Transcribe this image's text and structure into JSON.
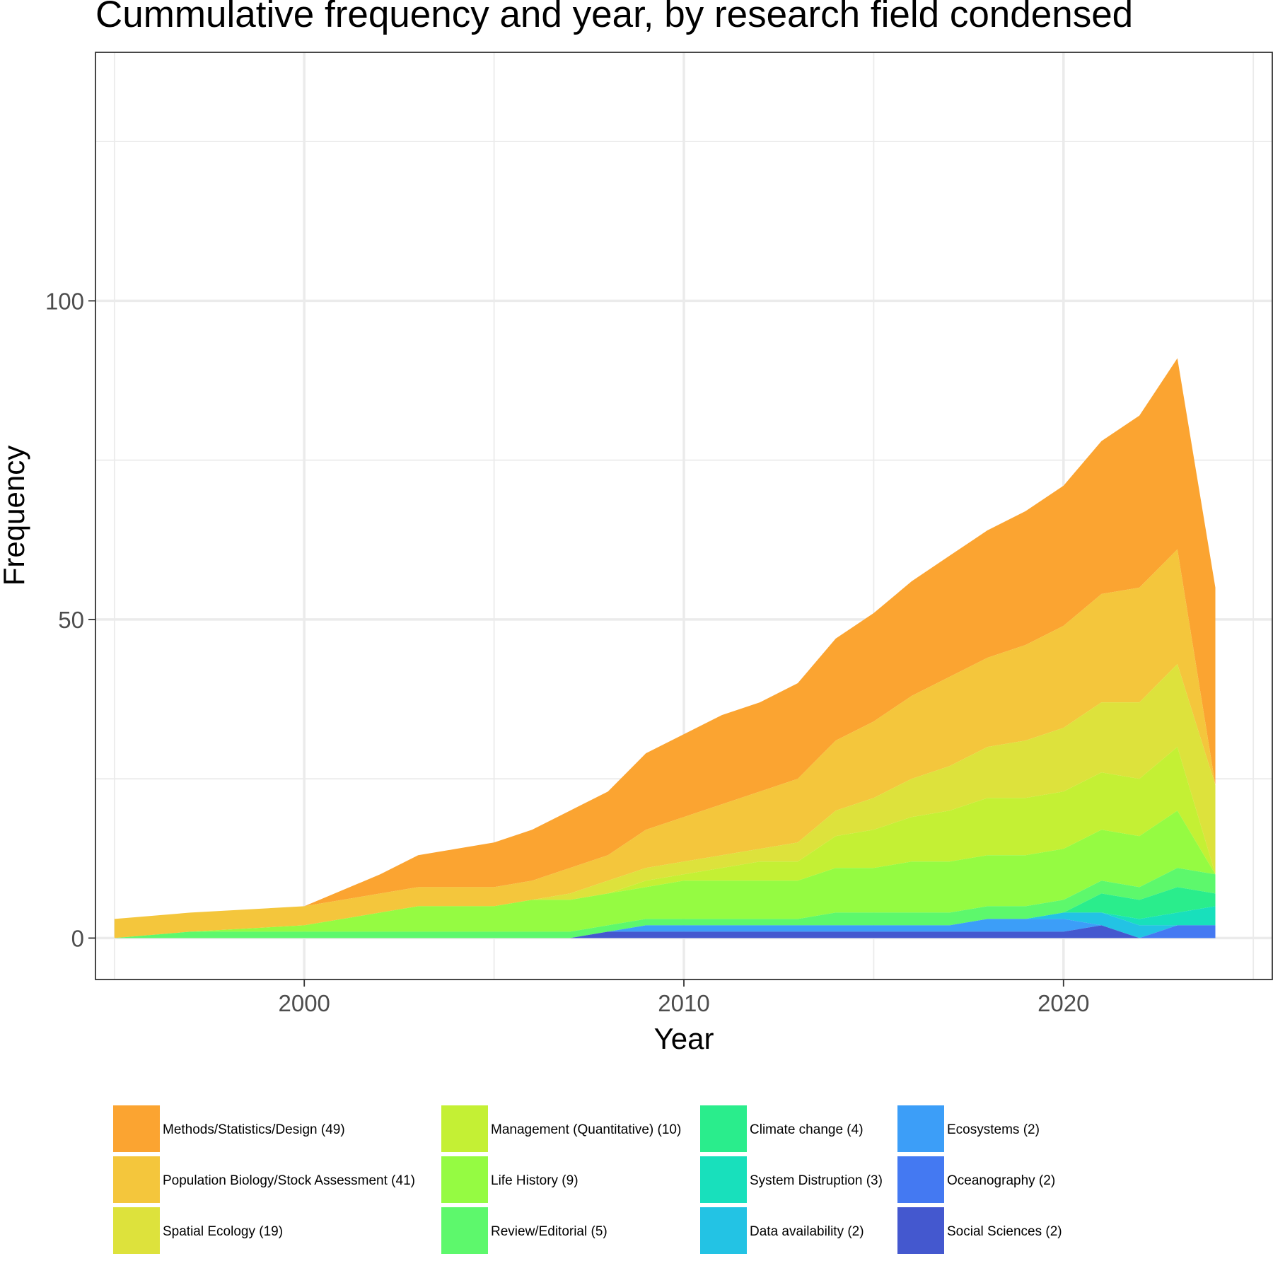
{
  "chart_data": {
    "type": "area",
    "stacked": true,
    "title": "Cummulative frequency and year, by research field condensed",
    "xlabel": "Year",
    "ylabel": "Frequency",
    "xlim": [
      1994.5,
      2025.5
    ],
    "ylim": [
      -6.5,
      139
    ],
    "x_ticks": [
      2000,
      2010,
      2020
    ],
    "y_ticks": [
      0,
      50,
      100
    ],
    "grid": true,
    "legend_position": "bottom",
    "x": [
      1995,
      1997,
      2000,
      2002,
      2003,
      2004,
      2005,
      2006,
      2007,
      2008,
      2009,
      2010,
      2011,
      2012,
      2013,
      2014,
      2015,
      2016,
      2017,
      2018,
      2019,
      2020,
      2021,
      2022,
      2023,
      2024
    ],
    "series": [
      {
        "name": "Methods/Statistics/Design (49)",
        "color": "#fba431",
        "values": [
          0,
          0,
          0,
          3,
          5,
          6,
          7,
          8,
          9,
          10,
          12,
          13,
          14,
          14,
          15,
          16,
          17,
          18,
          19,
          20,
          21,
          22,
          24,
          27,
          30,
          31
        ]
      },
      {
        "name": "Population Biology/Stock Assessment (41)",
        "color": "#f4c63c",
        "values": [
          3,
          3,
          3,
          3,
          3,
          3,
          3,
          3,
          4,
          4,
          6,
          7,
          8,
          9,
          10,
          11,
          12,
          13,
          14,
          14,
          15,
          16,
          17,
          18,
          18,
          0
        ]
      },
      {
        "name": "Spatial Ecology (19)",
        "color": "#dde23c",
        "values": [
          0,
          0,
          0,
          0,
          0,
          0,
          0,
          0,
          1,
          2,
          2,
          2,
          2,
          2,
          3,
          4,
          5,
          6,
          7,
          8,
          9,
          10,
          11,
          12,
          13,
          14
        ]
      },
      {
        "name": "Management (Quantitative) (10)",
        "color": "#c4f034",
        "values": [
          0,
          0,
          0,
          0,
          0,
          0,
          0,
          0,
          0,
          0,
          1,
          1,
          2,
          3,
          3,
          5,
          6,
          7,
          8,
          9,
          9,
          9,
          9,
          9,
          10,
          0
        ]
      },
      {
        "name": "Life History (9)",
        "color": "#95fb42",
        "values": [
          0,
          0,
          1,
          3,
          4,
          4,
          4,
          5,
          5,
          5,
          5,
          6,
          6,
          6,
          6,
          7,
          7,
          8,
          8,
          8,
          8,
          8,
          8,
          8,
          9,
          0
        ]
      },
      {
        "name": "Review/Editorial (5)",
        "color": "#5df86c",
        "values": [
          0,
          1,
          1,
          1,
          1,
          1,
          1,
          1,
          1,
          1,
          1,
          1,
          1,
          1,
          1,
          2,
          2,
          2,
          2,
          2,
          2,
          2,
          2,
          2,
          3,
          3
        ]
      },
      {
        "name": "Climate change (4)",
        "color": "#2aed8c",
        "values": [
          0,
          0,
          0,
          0,
          0,
          0,
          0,
          0,
          0,
          0,
          0,
          0,
          0,
          0,
          0,
          0,
          0,
          0,
          0,
          0,
          0,
          0,
          3,
          3,
          4,
          2
        ]
      },
      {
        "name": "System Distruption (3)",
        "color": "#18e0bc",
        "values": [
          0,
          0,
          0,
          0,
          0,
          0,
          0,
          0,
          0,
          0,
          0,
          0,
          0,
          0,
          0,
          0,
          0,
          0,
          0,
          0,
          0,
          0,
          0,
          1,
          2,
          3
        ]
      },
      {
        "name": "Data availability (2)",
        "color": "#23c3e4",
        "values": [
          0,
          0,
          0,
          0,
          0,
          0,
          0,
          0,
          0,
          0,
          0,
          0,
          0,
          0,
          0,
          0,
          0,
          0,
          0,
          0,
          0,
          1,
          2,
          2,
          0,
          0
        ]
      },
      {
        "name": "Ecosystems (2)",
        "color": "#3c9ef8",
        "values": [
          0,
          0,
          0,
          0,
          0,
          0,
          0,
          0,
          0,
          0,
          1,
          1,
          1,
          1,
          1,
          1,
          1,
          1,
          1,
          2,
          2,
          2,
          0,
          0,
          0,
          0
        ]
      },
      {
        "name": "Oceanography (2)",
        "color": "#4479f2",
        "values": [
          0,
          0,
          0,
          0,
          0,
          0,
          0,
          0,
          0,
          0,
          0,
          0,
          0,
          0,
          0,
          0,
          0,
          0,
          0,
          0,
          0,
          0,
          0,
          0,
          2,
          2
        ]
      },
      {
        "name": "Social Sciences (2)",
        "color": "#4458cf",
        "values": [
          0,
          0,
          0,
          0,
          0,
          0,
          0,
          0,
          0,
          1,
          1,
          1,
          1,
          1,
          1,
          1,
          1,
          1,
          1,
          1,
          1,
          1,
          2,
          0,
          0,
          0
        ]
      }
    ]
  }
}
